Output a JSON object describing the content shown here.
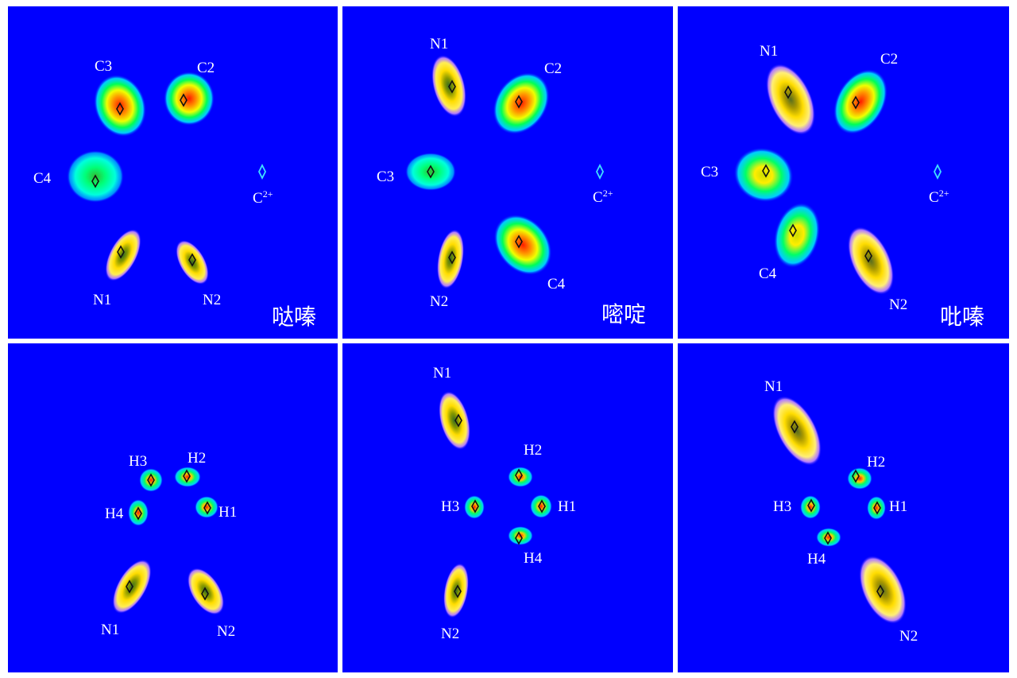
{
  "colors": {
    "background": "#0000ff",
    "divider": "#ffffff",
    "label": "#ffffff",
    "ion_track": "#ffffff",
    "ion_marker": "#40e0ff"
  },
  "panels": [
    {
      "id": "p00",
      "molecule": "哒嗪",
      "ion_label": {
        "base": "C",
        "sup": "2+"
      },
      "labels": [
        "C3",
        "C2",
        "C4",
        "N1",
        "N2"
      ]
    },
    {
      "id": "p01",
      "molecule": "嘧啶",
      "ion_label": {
        "base": "C",
        "sup": "2+"
      },
      "labels": [
        "N1",
        "C2",
        "C3",
        "N2",
        "C4"
      ]
    },
    {
      "id": "p02",
      "molecule": "吡嗪",
      "ion_label": {
        "base": "C",
        "sup": "2+"
      },
      "labels": [
        "N1",
        "C2",
        "C3",
        "C4",
        "N2"
      ]
    },
    {
      "id": "p10",
      "labels": [
        "H3",
        "H2",
        "H4",
        "H1",
        "N1",
        "N2"
      ]
    },
    {
      "id": "p11",
      "labels": [
        "N1",
        "H2",
        "H3",
        "H1",
        "H4",
        "N2"
      ]
    },
    {
      "id": "p12",
      "labels": [
        "N1",
        "H2",
        "H3",
        "H1",
        "H4",
        "N2"
      ]
    }
  ]
}
